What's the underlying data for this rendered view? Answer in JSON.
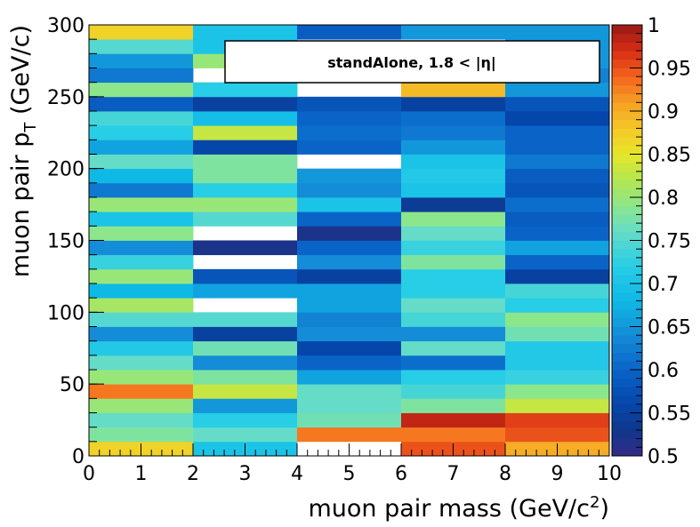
{
  "chart_data": {
    "type": "heatmap",
    "title": "",
    "legend_text": "standAlone, 1.8 < |η|",
    "xlabel": "muon pair mass (GeV/c²)",
    "ylabel": "muon pair p_T (GeV/c)",
    "xlim": [
      0,
      10
    ],
    "ylim": [
      0,
      300
    ],
    "zlim": [
      0,
      1
    ],
    "z_display_range": [
      0.5,
      1
    ],
    "x_ticks": [
      "0",
      "1",
      "2",
      "3",
      "4",
      "5",
      "6",
      "7",
      "8",
      "9",
      "10"
    ],
    "y_ticks": [
      "0",
      "50",
      "100",
      "150",
      "200",
      "250",
      "300"
    ],
    "z_ticks": [
      "0.5",
      "0.55",
      "0.6",
      "0.65",
      "0.7",
      "0.75",
      "0.8",
      "0.85",
      "0.9",
      "0.95",
      "1"
    ],
    "x_bin_edges": [
      0,
      2,
      4,
      6,
      8,
      10
    ],
    "y_bin_width": 10,
    "z_values_by_x_bin": [
      [
        0.87,
        0.78,
        0.76,
        0.8,
        0.93,
        0.8,
        0.76,
        0.71,
        0.64,
        0.75,
        0.81,
        0.68,
        0.8,
        0.73,
        0.64,
        0.79,
        0.7,
        0.8,
        0.62,
        0.68,
        0.76,
        0.66,
        0.72,
        0.74,
        0.59,
        0.79,
        0.62,
        0.65,
        0.75,
        0.87
      ],
      [
        0.7,
        0.76,
        0.72,
        0.65,
        0.83,
        0.78,
        0.64,
        0.77,
        0.55,
        0.75,
        0.0,
        0.66,
        0.58,
        0.0,
        0.52,
        0.0,
        0.75,
        0.8,
        0.72,
        0.78,
        0.78,
        0.56,
        0.83,
        0.69,
        0.55,
        0.72,
        0.0,
        0.8,
        0.7,
        0.7
      ],
      [
        0.0,
        0.93,
        0.77,
        0.76,
        0.76,
        0.66,
        0.6,
        0.56,
        0.64,
        0.63,
        0.66,
        0.66,
        0.55,
        0.64,
        0.6,
        0.52,
        0.6,
        0.7,
        0.64,
        0.65,
        0.0,
        0.6,
        0.61,
        0.6,
        0.58,
        0.0,
        0.0,
        0.0,
        0.0,
        0.59
      ],
      [
        0.95,
        0.93,
        0.98,
        0.78,
        0.74,
        0.72,
        0.61,
        0.76,
        0.64,
        0.74,
        0.76,
        0.72,
        0.72,
        0.78,
        0.73,
        0.76,
        0.79,
        0.54,
        0.7,
        0.71,
        0.7,
        0.65,
        0.62,
        0.61,
        0.55,
        0.89,
        0.53,
        0.0,
        0.0,
        0.65
      ],
      [
        0.9,
        0.95,
        0.96,
        0.83,
        0.79,
        0.73,
        0.71,
        0.71,
        0.77,
        0.79,
        0.72,
        0.74,
        0.55,
        0.6,
        0.66,
        0.6,
        0.59,
        0.61,
        0.58,
        0.59,
        0.62,
        0.6,
        0.6,
        0.56,
        0.58,
        0.65,
        0.63,
        0.65,
        0.65,
        0.65
      ]
    ]
  }
}
